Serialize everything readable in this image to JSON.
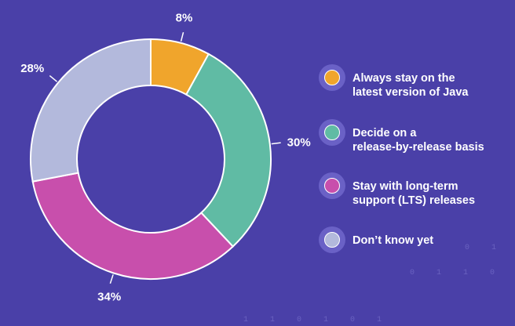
{
  "chart_data": {
    "type": "pie",
    "donut": true,
    "title": "",
    "legend_position": "right",
    "slices": [
      {
        "label": "Always stay on the latest version of Java",
        "value": 8,
        "display": "8%",
        "color": "#f0a52c"
      },
      {
        "label": "Decide on a release-by-release basis",
        "value": 30,
        "display": "30%",
        "color": "#60bba4"
      },
      {
        "label": "Stay with long-term support (LTS) releases",
        "value": 34,
        "display": "34%",
        "color": "#c84fac"
      },
      {
        "label": "Don’t know yet",
        "value": 28,
        "display": "28%",
        "color": "#b3b9dc"
      }
    ]
  },
  "legend": [
    {
      "line1": "Always stay on the",
      "line2": "latest version of Java"
    },
    {
      "line1": "Decide on a",
      "line2": "release-by-release basis"
    },
    {
      "line1": "Stay with long-term",
      "line2": "support (LTS) releases"
    },
    {
      "line1": "Don’t know yet",
      "line2": ""
    }
  ],
  "decoration": {
    "binary_row_1": "0 1 1",
    "binary_row_2": "0 1 1 0 1",
    "binary_row_3": "1 1 0 1 0 1"
  }
}
